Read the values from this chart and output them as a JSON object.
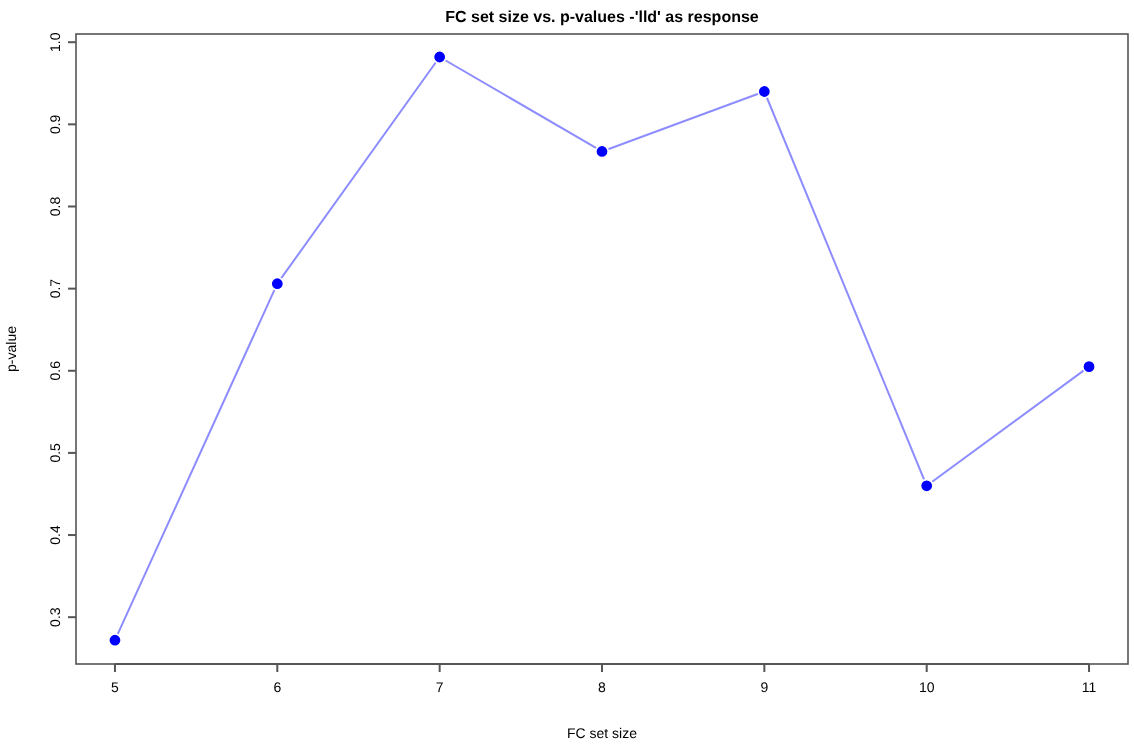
{
  "chart_data": {
    "type": "line",
    "title": "FC set size vs. p-values -'lld' as response",
    "xlabel": "FC set size",
    "ylabel": "p-value",
    "x": [
      5,
      6,
      7,
      8,
      9,
      10,
      11
    ],
    "series": [
      {
        "color": "#0000ff",
        "values": [
          0.272,
          0.706,
          0.982,
          0.867,
          0.94,
          0.46,
          0.605
        ]
      }
    ],
    "xlim": [
      4.76,
      11.24
    ],
    "xticks": [
      5,
      6,
      7,
      8,
      9,
      10,
      11
    ],
    "ylim": [
      0.243,
      1.01
    ],
    "yticks": [
      0.3,
      0.4,
      0.5,
      0.6,
      0.7,
      0.8,
      0.9,
      {
        "value": 1,
        "label": "1.0"
      }
    ],
    "marker": "circle"
  }
}
